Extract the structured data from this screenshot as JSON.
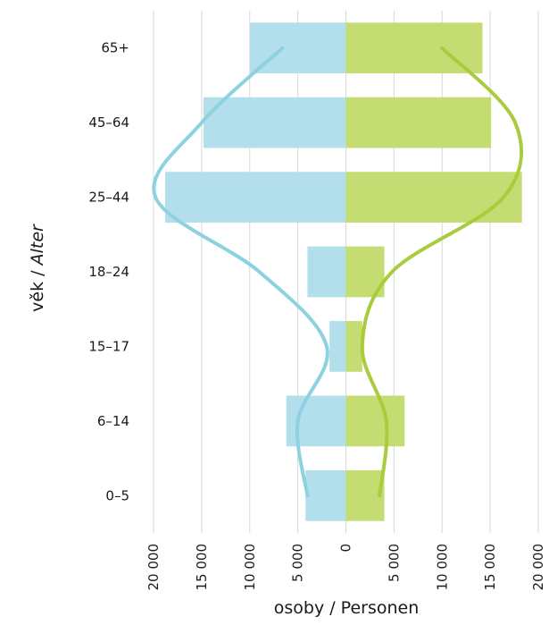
{
  "chart_data": {
    "type": "bar",
    "orientation": "horizontal-diverging",
    "categories": [
      "65+",
      "45–64",
      "25–44",
      "18–24",
      "15–17",
      "6–14",
      "0–5"
    ],
    "series": [
      {
        "values": [
          -10000,
          -14800,
          -18800,
          -4000,
          -1700,
          -6200,
          -4200
        ],
        "color": "#b2dfeb"
      },
      {
        "values": [
          14200,
          15100,
          18300,
          4000,
          1700,
          6100,
          4000
        ],
        "color": "#c5dc72"
      }
    ],
    "curves": [
      {
        "color": "#8dd2e0",
        "points": [
          [
            6600,
            "65+"
          ],
          [
            15000,
            "45–64"
          ],
          [
            19800,
            "25–44"
          ],
          [
            9000,
            "18–24"
          ],
          [
            2000,
            "15–17"
          ],
          [
            5000,
            "6–14"
          ],
          [
            4000,
            "0–5"
          ]
        ]
      },
      {
        "color": "#a9cc3c",
        "points": [
          [
            10000,
            "65+"
          ],
          [
            17600,
            "45–64"
          ],
          [
            16400,
            "25–44"
          ],
          [
            4800,
            "18–24"
          ],
          [
            1700,
            "15–17"
          ],
          [
            4200,
            "6–14"
          ],
          [
            3500,
            "0–5"
          ]
        ]
      }
    ],
    "xlim": [
      -20000,
      20000
    ],
    "x_ticks": [
      "20 000",
      "15 000",
      "10 000",
      "5 000",
      "0",
      "5 000",
      "10 000",
      "15 000",
      "20 000"
    ],
    "xlabel": "osoby / Personen",
    "ylabel_plain": "věk / ",
    "ylabel_italic": "Alter",
    "grid": true,
    "gridColor": "#d9d9d9"
  }
}
